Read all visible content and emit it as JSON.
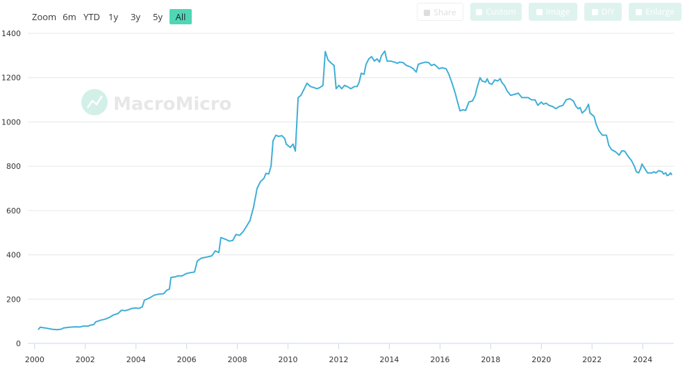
{
  "zoom_label": "Zoom",
  "range_buttons": [
    "6m",
    "YTD",
    "1y",
    "3y",
    "5y",
    "All"
  ],
  "active_range": 5,
  "actions": [
    "Share",
    "Custom",
    "Image",
    "DIY",
    "Enlarge"
  ],
  "watermark": "MacroMicro",
  "chart_data": {
    "type": "line",
    "x": [
      2000.14,
      2000.22,
      2000.41,
      2000.69,
      2000.88,
      2001.04,
      2001.15,
      2001.37,
      2001.59,
      2001.78,
      2001.92,
      2002.11,
      2002.19,
      2002.33,
      2002.41,
      2002.61,
      2002.8,
      2002.96,
      2003.1,
      2003.29,
      2003.43,
      2003.57,
      2003.7,
      2003.84,
      2003.98,
      2004.11,
      2004.25,
      2004.33,
      2004.53,
      2004.72,
      2004.88,
      2005.1,
      2005.21,
      2005.32,
      2005.38,
      2005.54,
      2005.65,
      2005.82,
      2005.98,
      2006.17,
      2006.31,
      2006.42,
      2006.58,
      2006.8,
      2006.99,
      2007.13,
      2007.27,
      2007.35,
      2007.54,
      2007.68,
      2007.82,
      2007.95,
      2008.09,
      2008.23,
      2008.37,
      2008.5,
      2008.64,
      2008.78,
      2008.91,
      2009.05,
      2009.13,
      2009.24,
      2009.33,
      2009.41,
      2009.52,
      2009.63,
      2009.76,
      2009.87,
      2009.93,
      2010.09,
      2010.2,
      2010.29,
      2010.4,
      2010.51,
      2010.62,
      2010.75,
      2010.89,
      2011.03,
      2011.14,
      2011.25,
      2011.38,
      2011.47,
      2011.58,
      2011.71,
      2011.82,
      2011.9,
      2012.01,
      2012.12,
      2012.23,
      2012.34,
      2012.48,
      2012.62,
      2012.73,
      2012.81,
      2012.89,
      2013.0,
      2013.08,
      2013.19,
      2013.3,
      2013.41,
      2013.52,
      2013.61,
      2013.69,
      2013.82,
      2013.91,
      2014.04,
      2014.21,
      2014.32,
      2014.4,
      2014.54,
      2014.67,
      2014.81,
      2014.95,
      2015.06,
      2015.14,
      2015.25,
      2015.42,
      2015.55,
      2015.66,
      2015.77,
      2015.88,
      2015.96,
      2016.07,
      2016.24,
      2016.35,
      2016.46,
      2016.6,
      2016.68,
      2016.79,
      2016.9,
      2017.01,
      2017.14,
      2017.28,
      2017.39,
      2017.45,
      2017.58,
      2017.66,
      2017.8,
      2017.86,
      2017.94,
      2018.05,
      2018.16,
      2018.27,
      2018.38,
      2018.43,
      2018.54,
      2018.65,
      2018.79,
      2018.95,
      2019.09,
      2019.23,
      2019.37,
      2019.48,
      2019.61,
      2019.75,
      2019.86,
      2020.0,
      2020.08,
      2020.19,
      2020.3,
      2020.44,
      2020.57,
      2020.71,
      2020.85,
      2020.98,
      2021.12,
      2021.26,
      2021.37,
      2021.45,
      2021.53,
      2021.61,
      2021.75,
      2021.86,
      2021.92,
      2022.08,
      2022.16,
      2022.27,
      2022.41,
      2022.57,
      2022.66,
      2022.77,
      2022.93,
      2023.07,
      2023.18,
      2023.29,
      2023.42,
      2023.56,
      2023.67,
      2023.75,
      2023.84,
      2023.92,
      2023.97,
      2024.08,
      2024.19,
      2024.36,
      2024.44,
      2024.52,
      2024.63,
      2024.77,
      2024.82,
      2024.91,
      2024.96,
      2025.02,
      2025.1,
      2025.15
    ],
    "series": [
      {
        "color": "#3eaed6",
        "values": [
          62,
          73,
          70,
          64,
          62,
          64,
          70,
          73,
          75,
          74,
          78,
          78,
          82,
          85,
          97,
          105,
          110,
          118,
          128,
          135,
          150,
          148,
          152,
          158,
          160,
          158,
          165,
          195,
          205,
          218,
          222,
          225,
          240,
          245,
          298,
          300,
          305,
          305,
          315,
          320,
          322,
          372,
          385,
          390,
          395,
          418,
          410,
          478,
          470,
          462,
          465,
          492,
          488,
          505,
          530,
          555,
          615,
          700,
          730,
          745,
          768,
          765,
          800,
          915,
          940,
          935,
          938,
          925,
          900,
          885,
          900,
          868,
          1110,
          1120,
          1145,
          1175,
          1160,
          1155,
          1150,
          1155,
          1165,
          1318,
          1280,
          1265,
          1255,
          1150,
          1165,
          1150,
          1165,
          1160,
          1150,
          1160,
          1160,
          1180,
          1220,
          1215,
          1260,
          1285,
          1295,
          1275,
          1285,
          1270,
          1300,
          1320,
          1275,
          1275,
          1270,
          1265,
          1270,
          1268,
          1255,
          1250,
          1240,
          1225,
          1260,
          1265,
          1270,
          1268,
          1255,
          1260,
          1250,
          1240,
          1245,
          1240,
          1215,
          1180,
          1130,
          1095,
          1050,
          1055,
          1052,
          1090,
          1095,
          1120,
          1150,
          1200,
          1185,
          1180,
          1195,
          1175,
          1170,
          1190,
          1185,
          1195,
          1180,
          1165,
          1140,
          1120,
          1125,
          1130,
          1110,
          1110,
          1110,
          1100,
          1100,
          1075,
          1090,
          1080,
          1085,
          1075,
          1070,
          1060,
          1070,
          1075,
          1100,
          1105,
          1095,
          1070,
          1060,
          1065,
          1040,
          1055,
          1080,
          1040,
          1025,
          990,
          960,
          940,
          940,
          895,
          875,
          865,
          850,
          870,
          868,
          845,
          825,
          800,
          775,
          770,
          790,
          810,
          790,
          770,
          770,
          775,
          770,
          780,
          775,
          765,
          770,
          758,
          760,
          770,
          760
        ]
      }
    ],
    "xlim": [
      1999.73,
      2025.23
    ],
    "xticks": [
      2000,
      2002,
      2004,
      2006,
      2008,
      2010,
      2012,
      2014,
      2016,
      2018,
      2020,
      2022,
      2024
    ],
    "ylim": [
      0,
      1400
    ],
    "yticks": [
      0,
      200,
      400,
      600,
      800,
      1000,
      1200,
      1400
    ],
    "grid": true
  }
}
